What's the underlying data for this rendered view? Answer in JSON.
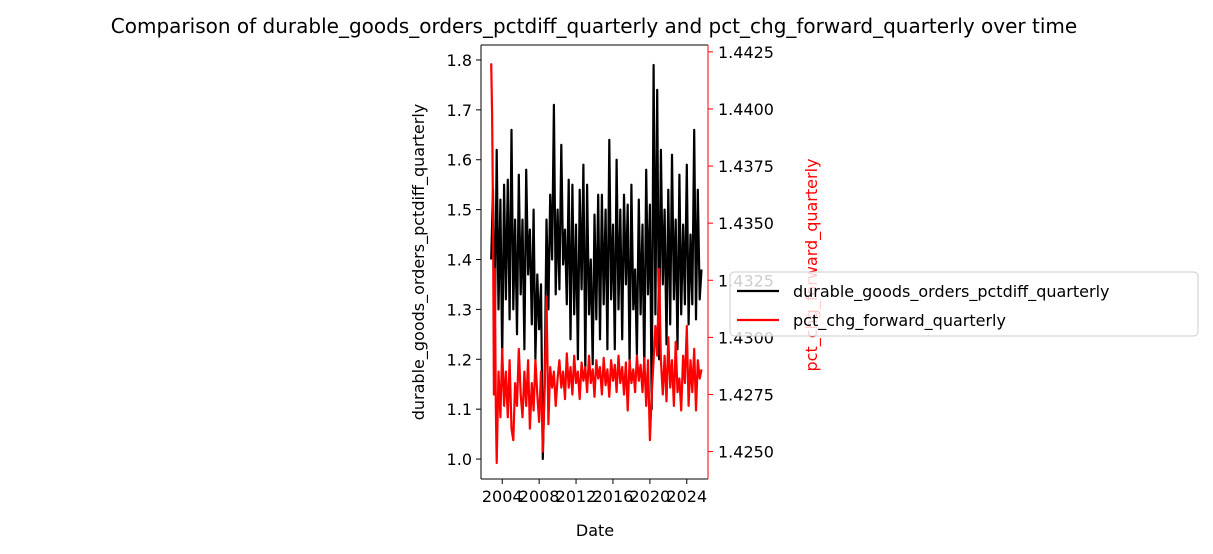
{
  "chart_data": {
    "type": "line",
    "title": "Comparison of durable_goods_orders_pctdiff_quarterly and pct_chg_forward_quarterly over time",
    "xlabel": "Date",
    "ylabel_left": "durable_goods_orders_pctdiff_quarterly",
    "ylabel_right": "pct_chg_forward_quarterly",
    "x_ticks": [
      "2004",
      "2008",
      "2012",
      "2016",
      "2020",
      "2024"
    ],
    "x_tick_values": [
      2004,
      2008,
      2012,
      2016,
      2020,
      2024
    ],
    "xlim": [
      2001.7,
      2026.3
    ],
    "y_left_ticks": [
      "1.0",
      "1.1",
      "1.2",
      "1.3",
      "1.4",
      "1.5",
      "1.6",
      "1.7",
      "1.8"
    ],
    "y_left_tick_values": [
      1.0,
      1.1,
      1.2,
      1.3,
      1.4,
      1.5,
      1.6,
      1.7,
      1.8
    ],
    "ylim_left": [
      0.96,
      1.83
    ],
    "y_right_ticks": [
      "1.4250",
      "1.4275",
      "1.4300",
      "1.4325",
      "1.4350",
      "1.4375",
      "1.4400",
      "1.4425"
    ],
    "y_right_tick_values": [
      1.425,
      1.4275,
      1.43,
      1.4325,
      1.435,
      1.4375,
      1.44,
      1.4425
    ],
    "ylim_right": [
      1.4238,
      1.4428
    ],
    "legend_position": "center-right (outside)",
    "colors": {
      "left_series": "#000000",
      "right_series": "#ff0000"
    },
    "series": [
      {
        "name": "durable_goods_orders_pctdiff_quarterly",
        "axis": "left",
        "color": "#000000",
        "x": [
          2002.8,
          2003.0,
          2003.2,
          2003.4,
          2003.6,
          2003.8,
          2004.0,
          2004.2,
          2004.4,
          2004.6,
          2004.8,
          2005.0,
          2005.2,
          2005.4,
          2005.6,
          2005.8,
          2006.0,
          2006.2,
          2006.4,
          2006.6,
          2006.8,
          2007.0,
          2007.2,
          2007.4,
          2007.6,
          2007.8,
          2008.0,
          2008.2,
          2008.4,
          2008.6,
          2008.8,
          2009.0,
          2009.2,
          2009.4,
          2009.6,
          2009.8,
          2010.0,
          2010.2,
          2010.4,
          2010.6,
          2010.8,
          2011.0,
          2011.2,
          2011.4,
          2011.6,
          2011.8,
          2012.0,
          2012.2,
          2012.4,
          2012.6,
          2012.8,
          2013.0,
          2013.2,
          2013.4,
          2013.6,
          2013.8,
          2014.0,
          2014.2,
          2014.4,
          2014.6,
          2014.8,
          2015.0,
          2015.2,
          2015.4,
          2015.6,
          2015.8,
          2016.0,
          2016.2,
          2016.4,
          2016.6,
          2016.8,
          2017.0,
          2017.2,
          2017.4,
          2017.6,
          2017.8,
          2018.0,
          2018.2,
          2018.4,
          2018.6,
          2018.8,
          2019.0,
          2019.2,
          2019.4,
          2019.6,
          2019.8,
          2020.0,
          2020.2,
          2020.4,
          2020.6,
          2020.8,
          2021.0,
          2021.2,
          2021.4,
          2021.6,
          2021.8,
          2022.0,
          2022.2,
          2022.4,
          2022.6,
          2022.8,
          2023.0,
          2023.2,
          2023.4,
          2023.6,
          2023.8,
          2024.0,
          2024.2,
          2024.4,
          2024.6,
          2024.8,
          2025.0,
          2025.2,
          2025.4,
          2025.6
        ],
        "values": [
          1.4,
          1.54,
          1.25,
          1.62,
          1.3,
          1.52,
          1.2,
          1.55,
          1.32,
          1.56,
          1.28,
          1.66,
          1.3,
          1.48,
          1.25,
          1.57,
          1.33,
          1.48,
          1.22,
          1.58,
          1.37,
          1.46,
          1.27,
          1.5,
          1.2,
          1.37,
          1.26,
          1.35,
          1.0,
          1.16,
          1.48,
          1.3,
          1.53,
          1.4,
          1.71,
          1.33,
          1.5,
          1.34,
          1.63,
          1.39,
          1.46,
          1.31,
          1.56,
          1.24,
          1.55,
          1.29,
          1.47,
          1.2,
          1.54,
          1.34,
          1.59,
          1.18,
          1.55,
          1.29,
          1.4,
          1.19,
          1.49,
          1.28,
          1.53,
          1.24,
          1.53,
          1.31,
          1.5,
          1.22,
          1.64,
          1.32,
          1.47,
          1.22,
          1.6,
          1.3,
          1.5,
          1.24,
          1.53,
          1.35,
          1.51,
          1.19,
          1.55,
          1.3,
          1.38,
          1.21,
          1.52,
          1.29,
          1.47,
          1.17,
          1.58,
          1.33,
          1.51,
          1.1,
          1.79,
          1.29,
          1.74,
          1.2,
          1.62,
          1.35,
          1.5,
          1.23,
          1.54,
          1.27,
          1.61,
          1.32,
          1.48,
          1.22,
          1.57,
          1.29,
          1.47,
          1.31,
          1.59,
          1.27,
          1.45,
          1.31,
          1.66,
          1.28,
          1.54,
          1.32,
          1.38
        ]
      },
      {
        "name": "pct_chg_forward_quarterly",
        "axis": "right",
        "color": "#ff0000",
        "x": [
          2002.8,
          2002.9,
          2003.0,
          2003.1,
          2003.2,
          2003.3,
          2003.4,
          2003.6,
          2003.8,
          2004.0,
          2004.2,
          2004.4,
          2004.6,
          2004.8,
          2005.0,
          2005.2,
          2005.4,
          2005.6,
          2005.8,
          2006.0,
          2006.2,
          2006.4,
          2006.6,
          2006.8,
          2007.0,
          2007.2,
          2007.4,
          2007.6,
          2007.8,
          2008.0,
          2008.2,
          2008.4,
          2008.6,
          2008.8,
          2009.0,
          2009.2,
          2009.4,
          2009.6,
          2009.8,
          2010.0,
          2010.2,
          2010.4,
          2010.6,
          2010.8,
          2011.0,
          2011.2,
          2011.4,
          2011.6,
          2011.8,
          2012.0,
          2012.2,
          2012.4,
          2012.6,
          2012.8,
          2013.0,
          2013.2,
          2013.4,
          2013.6,
          2013.8,
          2014.0,
          2014.2,
          2014.4,
          2014.6,
          2014.8,
          2015.0,
          2015.2,
          2015.4,
          2015.6,
          2015.8,
          2016.0,
          2016.2,
          2016.4,
          2016.6,
          2016.8,
          2017.0,
          2017.2,
          2017.4,
          2017.6,
          2017.8,
          2018.0,
          2018.2,
          2018.4,
          2018.6,
          2018.8,
          2019.0,
          2019.2,
          2019.4,
          2019.6,
          2019.8,
          2020.0,
          2020.2,
          2020.4,
          2020.6,
          2020.8,
          2021.0,
          2021.2,
          2021.4,
          2021.6,
          2021.8,
          2022.0,
          2022.2,
          2022.4,
          2022.6,
          2022.8,
          2023.0,
          2023.2,
          2023.4,
          2023.6,
          2023.8,
          2024.0,
          2024.2,
          2024.4,
          2024.6,
          2024.8,
          2025.0,
          2025.2,
          2025.4,
          2025.6
        ],
        "values": [
          1.442,
          1.4398,
          1.4355,
          1.4275,
          1.433,
          1.427,
          1.4245,
          1.4285,
          1.4265,
          1.4295,
          1.427,
          1.4285,
          1.4265,
          1.429,
          1.426,
          1.4255,
          1.428,
          1.427,
          1.4295,
          1.4275,
          1.4265,
          1.4285,
          1.427,
          1.429,
          1.426,
          1.428,
          1.4268,
          1.429,
          1.4275,
          1.4263,
          1.4285,
          1.425,
          1.4278,
          1.4318,
          1.4262,
          1.4287,
          1.4278,
          1.4285,
          1.427,
          1.4282,
          1.429,
          1.4278,
          1.4285,
          1.4273,
          1.4293,
          1.4278,
          1.4287,
          1.4275,
          1.4292,
          1.428,
          1.4285,
          1.4273,
          1.4289,
          1.4281,
          1.4287,
          1.4276,
          1.4292,
          1.428,
          1.4286,
          1.4274,
          1.429,
          1.4282,
          1.4287,
          1.4275,
          1.4291,
          1.4279,
          1.4286,
          1.4274,
          1.429,
          1.4281,
          1.4288,
          1.4276,
          1.4292,
          1.428,
          1.4287,
          1.4275,
          1.4289,
          1.4268,
          1.429,
          1.428,
          1.4286,
          1.4276,
          1.4292,
          1.4281,
          1.4288,
          1.4276,
          1.4291,
          1.427,
          1.429,
          1.4255,
          1.4275,
          1.429,
          1.4305,
          1.4292,
          1.433,
          1.429,
          1.4275,
          1.4292,
          1.4272,
          1.43,
          1.4278,
          1.429,
          1.427,
          1.4298,
          1.4276,
          1.4282,
          1.4268,
          1.4292,
          1.428,
          1.4305,
          1.427,
          1.429,
          1.4276,
          1.4295,
          1.4268,
          1.429,
          1.4282,
          1.4286
        ]
      }
    ]
  }
}
